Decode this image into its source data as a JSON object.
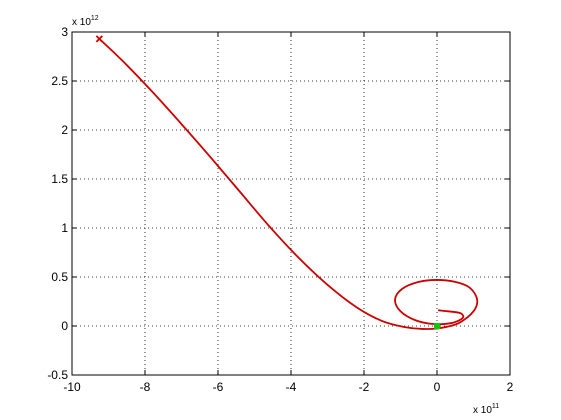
{
  "chart_data": {
    "type": "line",
    "title": "",
    "xlabel": "",
    "ylabel": "",
    "x_multiplier_label": "x 10",
    "x_multiplier_exponent": "11",
    "y_multiplier_label": "x 10",
    "y_multiplier_exponent": "12",
    "xlim": [
      -10,
      2
    ],
    "ylim": [
      -0.5,
      3
    ],
    "x_ticks": [
      -10,
      -8,
      -6,
      -4,
      -2,
      0,
      2
    ],
    "y_ticks": [
      -0.5,
      0,
      0.5,
      1,
      1.5,
      2,
      2.5,
      3
    ],
    "x_tick_labels": [
      "-10",
      "-8",
      "-6",
      "-4",
      "-2",
      "0",
      "2"
    ],
    "y_tick_labels": [
      "-0.5",
      "0",
      "0.5",
      "1",
      "1.5",
      "2",
      "2.5",
      "3"
    ],
    "grid": true,
    "grid_style": "dotted",
    "box": true,
    "series": [
      {
        "color": "#cc0000",
        "x": [
          -9.25,
          -8.6,
          -7.8,
          -7.0,
          -6.2,
          -5.4,
          -4.6,
          -3.8,
          -3.0,
          -2.2,
          -1.5,
          -0.9,
          -0.4,
          0.1,
          0.6,
          1.0,
          1.1,
          0.9,
          0.5,
          0.0,
          -0.5,
          -0.95,
          -1.15,
          -1.0,
          -0.6,
          -0.1,
          0.4,
          0.7,
          0.65,
          0.3,
          0.05
        ],
        "y": [
          2.93,
          2.7,
          2.39,
          2.06,
          1.72,
          1.37,
          1.02,
          0.7,
          0.42,
          0.19,
          0.05,
          -0.01,
          -0.03,
          -0.02,
          0.03,
          0.15,
          0.27,
          0.39,
          0.45,
          0.47,
          0.45,
          0.38,
          0.27,
          0.15,
          0.06,
          0.02,
          0.03,
          0.08,
          0.13,
          0.15,
          0.16
        ]
      }
    ],
    "markers": [
      {
        "label": "start",
        "x": -9.25,
        "y": 2.93,
        "color": "#cc0000",
        "symbol": "x"
      },
      {
        "label": "end",
        "x": 0.0,
        "y": 0.0,
        "color": "#00cc00",
        "symbol": "square"
      }
    ]
  }
}
